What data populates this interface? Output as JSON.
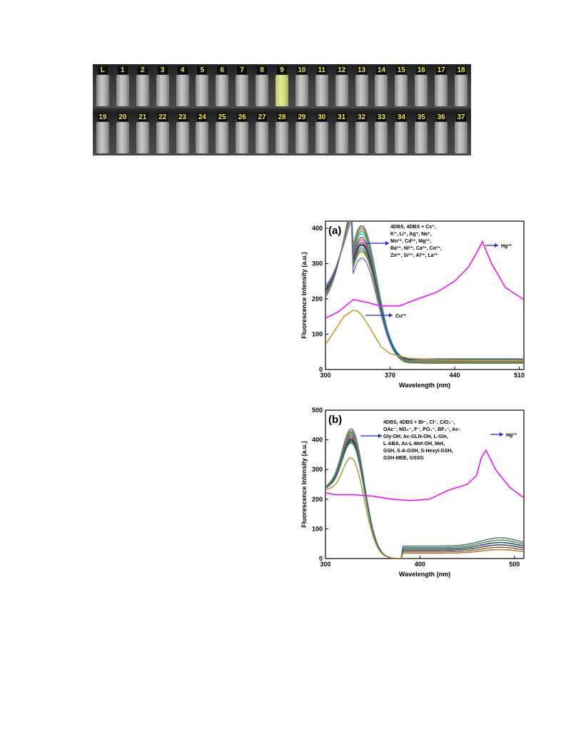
{
  "photo": {
    "row1_labels": [
      "L",
      "1",
      "2",
      "3",
      "4",
      "5",
      "6",
      "7",
      "8",
      "9",
      "10",
      "11",
      "12",
      "13",
      "14",
      "15",
      "16",
      "17",
      "18"
    ],
    "row2_labels": [
      "19",
      "20",
      "21",
      "22",
      "23",
      "24",
      "25",
      "26",
      "27",
      "28",
      "29",
      "30",
      "31",
      "32",
      "33",
      "34",
      "35",
      "36",
      "37"
    ],
    "highlight_label": "9",
    "highlight_color": "#f0ff9a"
  },
  "colors": {
    "hg": "#ff00ff",
    "cu": "#c99a1a",
    "arrow": "#1f1fff",
    "series_palette": [
      "#1f77b4",
      "#ff7f0e",
      "#7f7f7f",
      "#2ca02c",
      "#17becf",
      "#d62728",
      "#9467bd",
      "#8c564b",
      "#393939",
      "#0a3d8c",
      "#6a7f2a",
      "#2e8b8b",
      "#b8860b",
      "#5b6fd6",
      "#3c3c3c",
      "#8f8f2f",
      "#e07b39",
      "#4b4b9b"
    ]
  },
  "chart_data": [
    {
      "type": "line",
      "panel_label": "(a)",
      "xlabel": "Wavelength (nm)",
      "ylabel": "Fluorescence Intensity (a.u.)",
      "xlim": [
        300,
        515
      ],
      "ylim": [
        0,
        420
      ],
      "xticks": [
        300,
        370,
        440,
        510
      ],
      "yticks": [
        0,
        100,
        200,
        300,
        400
      ],
      "legend_text": [
        "4DBS, 4DBS + Cs⁺,",
        "K⁺, Li⁺, Ag⁺, Na⁺,",
        "Mn²⁺, Cd²⁺, Mg²⁺,",
        "Ba²⁺, Ni²⁺, Ca²⁺, Co²⁺,",
        "Zn²⁺, Sr²⁺, Al³⁺, La³⁺"
      ],
      "annotations": {
        "hg": "Hg²⁺",
        "cu": "Cu²⁺"
      },
      "bundle_peaks": [
        405,
        400,
        395,
        388,
        380,
        372,
        365,
        358,
        352,
        348,
        342,
        336,
        330,
        312
      ],
      "series": [
        {
          "name": "Hg²⁺",
          "x": [
            300,
            315,
            330,
            345,
            360,
            380,
            400,
            420,
            440,
            455,
            465,
            470,
            480,
            495,
            515
          ],
          "y": [
            145,
            165,
            198,
            190,
            180,
            180,
            200,
            218,
            250,
            290,
            335,
            362,
            300,
            232,
            198
          ]
        },
        {
          "name": "Cu²⁺",
          "x": [
            300,
            310,
            320,
            330,
            335,
            340,
            350,
            360,
            370,
            390,
            420,
            460,
            515
          ],
          "y": [
            70,
            110,
            150,
            168,
            165,
            152,
            110,
            65,
            45,
            32,
            28,
            26,
            26
          ]
        }
      ]
    },
    {
      "type": "line",
      "panel_label": "(b)",
      "xlabel": "Wavelength (nm)",
      "ylabel": "Fluorescence Intensity (a.u.)",
      "xlim": [
        300,
        510
      ],
      "ylim": [
        0,
        500
      ],
      "xticks": [
        300,
        400,
        500
      ],
      "yticks": [
        0,
        100,
        200,
        300,
        400,
        500
      ],
      "legend_text": [
        "4DBS, 4DBS + Br⁻, Cl⁻, ClO₄⁻,",
        "OAc⁻, NO₃⁻, F⁻, PO₄⁻, BF₄⁻, Ac-",
        "Gly-OH, Ac-GLN-OH, L-Gln,",
        "L-ABA, Ac-L-Met-OH, Met,",
        "GSH, S-A-GSH, S-Hexyl-GSH,",
        "GSH-MEE, GSSG"
      ],
      "annotations": {
        "hg": "Hg²⁺"
      },
      "bundle_peaks": [
        428,
        422,
        418,
        414,
        410,
        405,
        400,
        396,
        392,
        388,
        384,
        380,
        330
      ],
      "series": [
        {
          "name": "Hg²⁺",
          "x": [
            300,
            310,
            330,
            350,
            370,
            390,
            410,
            430,
            450,
            460,
            465,
            470,
            480,
            495,
            510
          ],
          "y": [
            222,
            215,
            215,
            210,
            200,
            195,
            200,
            230,
            250,
            280,
            340,
            365,
            300,
            240,
            205
          ]
        }
      ]
    }
  ]
}
